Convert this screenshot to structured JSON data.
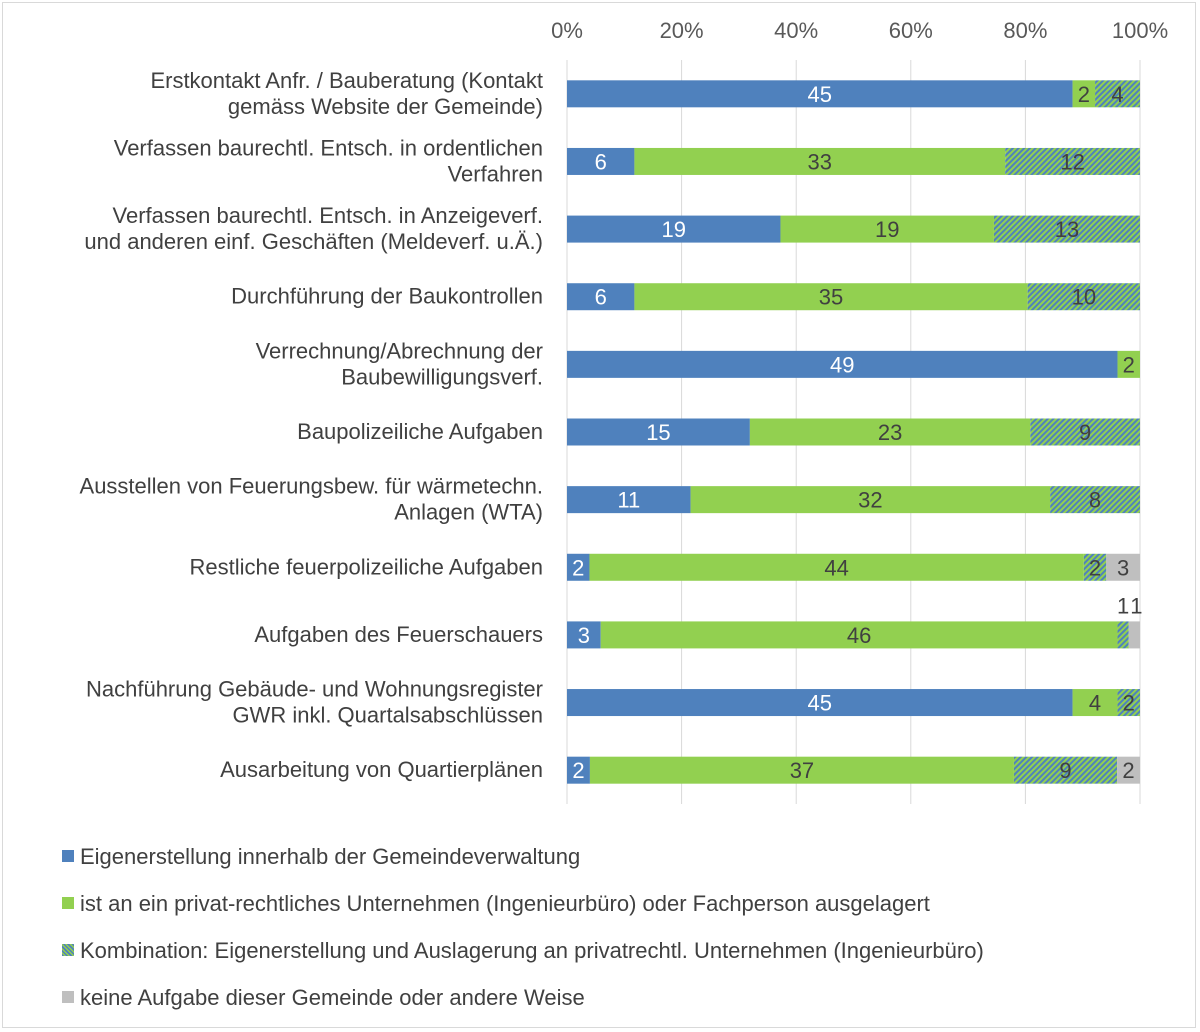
{
  "chart_data": {
    "type": "bar",
    "orientation": "horizontal",
    "stacked": "percent",
    "x_ticks": [
      "0%",
      "20%",
      "40%",
      "60%",
      "80%",
      "100%"
    ],
    "xlim": [
      0,
      100
    ],
    "grid": true,
    "legend_position": "bottom",
    "categories": [
      [
        "Erstkontakt Anfr. / Bauberatung (Kontakt",
        "gemäss Website der Gemeinde)"
      ],
      [
        "Verfassen baurechtl. Entsch. in ordentlichen",
        "Verfahren"
      ],
      [
        "Verfassen baurechtl. Entsch. in Anzeigeverf.",
        "und anderen einf. Geschäften (Meldeverf. u.Ä.)"
      ],
      [
        "Durchführung der Baukontrollen"
      ],
      [
        "Verrechnung/Abrechnung der",
        "Baubewilligungsverf."
      ],
      [
        "Baupolizeiliche Aufgaben"
      ],
      [
        "Ausstellen von Feuerungsbew. für wärmetechn.",
        "Anlagen (WTA)"
      ],
      [
        "Restliche feuerpolizeiliche Aufgaben"
      ],
      [
        "Aufgaben des Feuerschauers"
      ],
      [
        "Nachführung Gebäude- und Wohnungsregister",
        "GWR inkl. Quartalsabschlüssen"
      ],
      [
        "Ausarbeitung von Quartierplänen"
      ]
    ],
    "series": [
      {
        "name": "Eigenerstellung innerhalb der Gemeindeverwaltung",
        "color": "#4F81BD",
        "pattern": "solid",
        "label_color": "#ffffff",
        "values": [
          45,
          6,
          19,
          6,
          49,
          15,
          11,
          2,
          3,
          45,
          2
        ]
      },
      {
        "name": "ist an ein privat-rechtliches Unternehmen (Ingenieurbüro) oder Fachperson ausgelagert",
        "color": "#92D050",
        "pattern": "solid",
        "label_color": "#404040",
        "values": [
          2,
          33,
          19,
          35,
          2,
          23,
          32,
          44,
          46,
          4,
          37
        ]
      },
      {
        "name": "Kombination: Eigenerstellung und Auslagerung an privatrechtl. Unternehmen (Ingenieurbüro)",
        "color": "#92D050",
        "pattern": "hatch",
        "hatch_color": "#4F81BD",
        "label_color": "#404040",
        "values": [
          4,
          12,
          13,
          10,
          0,
          9,
          8,
          2,
          1,
          2,
          9
        ]
      },
      {
        "name": "keine Aufgabe dieser Gemeinde oder andere Weise",
        "color": "#BFBFBF",
        "pattern": "solid",
        "label_color": "#404040",
        "values": [
          0,
          0,
          0,
          0,
          0,
          0,
          0,
          3,
          1,
          0,
          2
        ]
      }
    ]
  }
}
